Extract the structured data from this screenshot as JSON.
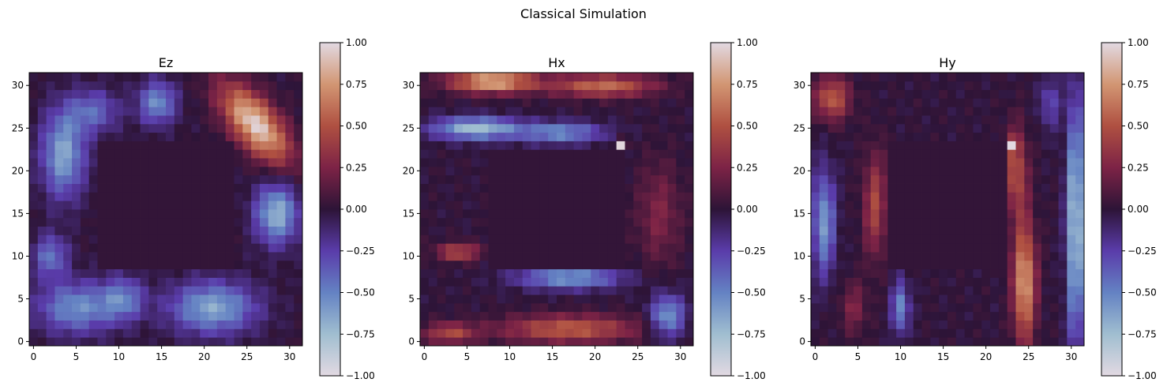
{
  "figure": {
    "suptitle": "Classical Simulation"
  },
  "colors": {
    "colormap": "twilight_shifted",
    "background": "#ffffff",
    "axis": "#000000"
  },
  "chart_data": [
    {
      "type": "heatmap",
      "title": "Ez",
      "grid_size": 32,
      "xlim": [
        -0.5,
        31.5
      ],
      "ylim": [
        -0.5,
        31.5
      ],
      "xticks": [
        0,
        5,
        10,
        15,
        20,
        25,
        30
      ],
      "yticks": [
        0,
        5,
        10,
        15,
        20,
        25,
        30
      ],
      "colorbar": {
        "range": [
          -1.0,
          1.0
        ],
        "ticks": [
          "1.00",
          "0.75",
          "0.50",
          "0.25",
          "0.00",
          "−0.25",
          "−0.50",
          "−0.75",
          "−1.00"
        ]
      },
      "obstacle": {
        "x": [
          8,
          23
        ],
        "y": [
          9,
          23
        ]
      },
      "features": [
        {
          "x": 26,
          "y": 25.5,
          "value": 0.95,
          "rx": 2.5,
          "ry": 5.5,
          "rot": 40
        },
        {
          "x": 3.5,
          "y": 22,
          "value": -0.65,
          "rx": 2.5,
          "ry": 5.0,
          "rot": 0
        },
        {
          "x": 14.5,
          "y": 28,
          "value": -0.55,
          "rx": 2.2,
          "ry": 2.5,
          "rot": 0
        },
        {
          "x": 28.5,
          "y": 15,
          "value": -0.7,
          "rx": 2.5,
          "ry": 3.5,
          "rot": 0
        },
        {
          "x": 21,
          "y": 4,
          "value": -0.65,
          "rx": 5.0,
          "ry": 3.0,
          "rot": 0
        },
        {
          "x": 5,
          "y": 4,
          "value": -0.55,
          "rx": 4.5,
          "ry": 3.0,
          "rot": 0
        },
        {
          "x": 2,
          "y": 10,
          "value": -0.45,
          "rx": 2.0,
          "ry": 2.5,
          "rot": 0
        },
        {
          "x": 10.5,
          "y": 5,
          "value": -0.45,
          "rx": 2.5,
          "ry": 2.5,
          "rot": 0
        },
        {
          "x": 7,
          "y": 27,
          "value": -0.4,
          "rx": 3.0,
          "ry": 2.5,
          "rot": 0
        }
      ]
    },
    {
      "type": "heatmap",
      "title": "Hx",
      "grid_size": 32,
      "xlim": [
        -0.5,
        31.5
      ],
      "ylim": [
        -0.5,
        31.5
      ],
      "xticks": [
        0,
        5,
        10,
        15,
        20,
        25,
        30
      ],
      "yticks": [
        0,
        5,
        10,
        15,
        20,
        25,
        30
      ],
      "colorbar": {
        "range": [
          -1.0,
          1.0
        ],
        "ticks": [
          "1.00",
          "0.75",
          "0.50",
          "0.25",
          "0.00",
          "−0.25",
          "−0.50",
          "−0.75",
          "−1.00"
        ]
      },
      "obstacle": {
        "x": [
          8,
          23
        ],
        "y": [
          9,
          22
        ]
      },
      "features": [
        {
          "x": 8,
          "y": 30.5,
          "value": 0.85,
          "rx": 5.0,
          "ry": 1.3,
          "rot": 0
        },
        {
          "x": 21,
          "y": 30,
          "value": 0.6,
          "rx": 6.0,
          "ry": 1.3,
          "rot": 0
        },
        {
          "x": 6,
          "y": 25,
          "value": -0.75,
          "rx": 5.0,
          "ry": 1.3,
          "rot": 0
        },
        {
          "x": 16,
          "y": 24.5,
          "value": -0.55,
          "rx": 5.0,
          "ry": 1.2,
          "rot": 0
        },
        {
          "x": 23,
          "y": 23,
          "value": 1.0,
          "rx": 0.6,
          "ry": 0.6,
          "rot": 0
        },
        {
          "x": 17,
          "y": 7.5,
          "value": -0.6,
          "rx": 6.0,
          "ry": 1.3,
          "rot": 0
        },
        {
          "x": 17,
          "y": 1.5,
          "value": 0.55,
          "rx": 8.0,
          "ry": 1.6,
          "rot": 0
        },
        {
          "x": 4,
          "y": 10.5,
          "value": 0.5,
          "rx": 2.5,
          "ry": 1.0,
          "rot": 0
        },
        {
          "x": 28.5,
          "y": 3,
          "value": -0.6,
          "rx": 2.0,
          "ry": 2.5,
          "rot": 0
        },
        {
          "x": 27.5,
          "y": 15,
          "value": 0.25,
          "rx": 2.5,
          "ry": 6.0,
          "rot": 0
        },
        {
          "x": 3,
          "y": 1,
          "value": 0.45,
          "rx": 3.0,
          "ry": 1.2,
          "rot": 0
        }
      ]
    },
    {
      "type": "heatmap",
      "title": "Hy",
      "grid_size": 32,
      "xlim": [
        -0.5,
        31.5
      ],
      "ylim": [
        -0.5,
        31.5
      ],
      "xticks": [
        0,
        5,
        10,
        15,
        20,
        25,
        30
      ],
      "yticks": [
        0,
        5,
        10,
        15,
        20,
        25,
        30
      ],
      "colorbar": {
        "range": [
          -1.0,
          1.0
        ],
        "ticks": [
          "1.00",
          "0.75",
          "0.50",
          "0.25",
          "0.00",
          "−0.25",
          "−0.50",
          "−0.75",
          "−1.00"
        ]
      },
      "obstacle": {
        "x": [
          9,
          22
        ],
        "y": [
          9,
          23
        ]
      },
      "features": [
        {
          "x": 30.5,
          "y": 14,
          "value": -0.85,
          "rx": 1.0,
          "ry": 14.0,
          "rot": 0
        },
        {
          "x": 24.5,
          "y": 7,
          "value": 0.8,
          "rx": 1.3,
          "ry": 7.0,
          "rot": 0
        },
        {
          "x": 23.5,
          "y": 20,
          "value": 0.5,
          "rx": 1.3,
          "ry": 5.0,
          "rot": 0
        },
        {
          "x": 23,
          "y": 23,
          "value": 0.95,
          "rx": 0.6,
          "ry": 0.6,
          "rot": 0
        },
        {
          "x": 1,
          "y": 14,
          "value": -0.6,
          "rx": 1.3,
          "ry": 6.0,
          "rot": 0
        },
        {
          "x": 2,
          "y": 28.5,
          "value": 0.55,
          "rx": 2.0,
          "ry": 2.5,
          "rot": 0
        },
        {
          "x": 7,
          "y": 16,
          "value": 0.45,
          "rx": 1.3,
          "ry": 6.0,
          "rot": 0
        },
        {
          "x": 10,
          "y": 4,
          "value": -0.55,
          "rx": 1.0,
          "ry": 3.0,
          "rot": 0
        },
        {
          "x": 27.5,
          "y": 28,
          "value": -0.3,
          "rx": 1.2,
          "ry": 3.0,
          "rot": 0
        },
        {
          "x": 4.5,
          "y": 4,
          "value": 0.25,
          "rx": 1.5,
          "ry": 3.0,
          "rot": 0
        }
      ]
    }
  ]
}
